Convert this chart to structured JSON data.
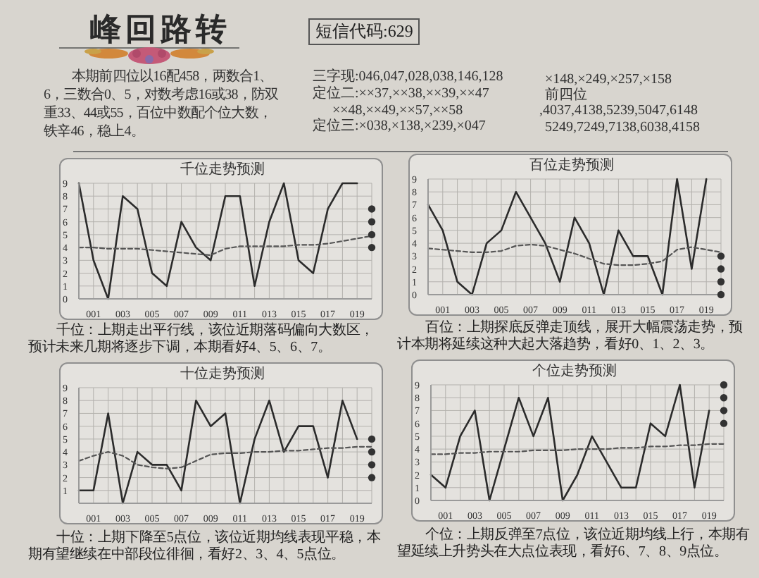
{
  "chart_data": [
    {
      "type": "other",
      "title": "峰回路转",
      "annotations": [
        "短信代码:629",
        "本期前四位以16配458，两数合1、6，三数合0、5，对数考虑16或38，防双重33、44或55，百位中数配个位大数，铁辛46，稳上4。",
        "三字现:046,047,028,038,146,128",
        "定位二:××37,××38,××39,××47",
        "××48,××49,××57,××58",
        "定位三:×038,×138,×239,×047",
        "×148,×249,×257,×158",
        "前四位",
        ",4037,4138,5239,5047,6148",
        "5249,7249,7138,6038,4158"
      ]
    },
    {
      "type": "line",
      "title": "千位走势预测",
      "categories": [
        null,
        "001",
        null,
        "003",
        null,
        "005",
        null,
        "007",
        null,
        "009",
        null,
        "011",
        null,
        "013",
        null,
        "015",
        null,
        "017",
        null,
        "019",
        null
      ],
      "series": [
        {
          "color": "#2b2b2b",
          "values": [
            9,
            3,
            0,
            8,
            7,
            2,
            1,
            6,
            4,
            3,
            8,
            8,
            1,
            6,
            9,
            3,
            2,
            7,
            9,
            9,
            null
          ]
        },
        {
          "color": "#555555",
          "line_style": "dashed",
          "values": [
            4.0,
            4.0,
            3.9,
            3.9,
            3.9,
            3.8,
            3.7,
            3.6,
            3.5,
            3.4,
            3.9,
            4.1,
            4.1,
            4.1,
            4.1,
            4.2,
            4.2,
            4.3,
            4.5,
            4.7,
            4.9
          ]
        },
        {
          "type": "scatter",
          "marker": "circle",
          "color": "#333333",
          "values": [
            null,
            null,
            null,
            null,
            null,
            null,
            null,
            null,
            null,
            null,
            null,
            null,
            null,
            null,
            null,
            null,
            null,
            null,
            null,
            null,
            7
          ]
        },
        {
          "type": "scatter",
          "marker": "circle",
          "color": "#333333",
          "values": [
            null,
            null,
            null,
            null,
            null,
            null,
            null,
            null,
            null,
            null,
            null,
            null,
            null,
            null,
            null,
            null,
            null,
            null,
            null,
            null,
            6
          ]
        },
        {
          "type": "scatter",
          "marker": "circle",
          "color": "#333333",
          "values": [
            null,
            null,
            null,
            null,
            null,
            null,
            null,
            null,
            null,
            null,
            null,
            null,
            null,
            null,
            null,
            null,
            null,
            null,
            null,
            null,
            5
          ]
        },
        {
          "type": "scatter",
          "marker": "circle",
          "color": "#333333",
          "values": [
            null,
            null,
            null,
            null,
            null,
            null,
            null,
            null,
            null,
            null,
            null,
            null,
            null,
            null,
            null,
            null,
            null,
            null,
            null,
            null,
            4
          ]
        }
      ],
      "ylim": [
        0,
        9
      ],
      "yticks": [
        0,
        1,
        2,
        3,
        4,
        5,
        6,
        7,
        8,
        9
      ],
      "grid": true,
      "annotations": [
        "千位：上期走出平行线，该位近期落码偏向大数区，预计未来几期将逐步下调，本期看好4、5、6、7。"
      ]
    },
    {
      "type": "line",
      "title": "百位走势预测",
      "categories": [
        null,
        "001",
        null,
        "003",
        null,
        "005",
        null,
        "007",
        null,
        "009",
        null,
        "011",
        null,
        "013",
        null,
        "015",
        null,
        "017",
        null,
        "019",
        null
      ],
      "series": [
        {
          "color": "#2b2b2b",
          "values": [
            7,
            5,
            1,
            0,
            4,
            5,
            8,
            6,
            4,
            1,
            6,
            4,
            0,
            5,
            3,
            3,
            0,
            9,
            2,
            9,
            null
          ]
        },
        {
          "color": "#555555",
          "line_style": "dashed",
          "values": [
            3.6,
            3.5,
            3.4,
            3.3,
            3.3,
            3.4,
            3.8,
            3.9,
            3.8,
            3.5,
            3.2,
            2.8,
            2.4,
            2.3,
            2.3,
            2.4,
            2.6,
            3.5,
            3.7,
            3.5,
            3.3
          ]
        },
        {
          "type": "scatter",
          "marker": "circle",
          "color": "#333333",
          "values": [
            null,
            null,
            null,
            null,
            null,
            null,
            null,
            null,
            null,
            null,
            null,
            null,
            null,
            null,
            null,
            null,
            null,
            null,
            null,
            null,
            3
          ]
        },
        {
          "type": "scatter",
          "marker": "circle",
          "color": "#333333",
          "values": [
            null,
            null,
            null,
            null,
            null,
            null,
            null,
            null,
            null,
            null,
            null,
            null,
            null,
            null,
            null,
            null,
            null,
            null,
            null,
            null,
            2
          ]
        },
        {
          "type": "scatter",
          "marker": "circle",
          "color": "#333333",
          "values": [
            null,
            null,
            null,
            null,
            null,
            null,
            null,
            null,
            null,
            null,
            null,
            null,
            null,
            null,
            null,
            null,
            null,
            null,
            null,
            null,
            1
          ]
        },
        {
          "type": "scatter",
          "marker": "circle",
          "color": "#333333",
          "values": [
            null,
            null,
            null,
            null,
            null,
            null,
            null,
            null,
            null,
            null,
            null,
            null,
            null,
            null,
            null,
            null,
            null,
            null,
            null,
            null,
            0
          ]
        }
      ],
      "ylim": [
        0,
        9
      ],
      "yticks": [
        0,
        1,
        2,
        3,
        4,
        5,
        6,
        7,
        8,
        9
      ],
      "grid": true,
      "annotations": [
        "百位：上期探底反弹走顶线，展开大幅震荡走势，预计本期将延续这种大起大落趋势，看好0、1、2、3。"
      ]
    },
    {
      "type": "line",
      "title": "十位走势预测",
      "categories": [
        null,
        "001",
        null,
        "003",
        null,
        "005",
        null,
        "007",
        null,
        "009",
        null,
        "011",
        null,
        "013",
        null,
        "015",
        null,
        "017",
        null,
        "019",
        null
      ],
      "series": [
        {
          "color": "#2b2b2b",
          "values": [
            1,
            1,
            7,
            0,
            4,
            3,
            3,
            1,
            8,
            6,
            7,
            0,
            5,
            8,
            4,
            6,
            6,
            2,
            8,
            5,
            null
          ]
        },
        {
          "color": "#555555",
          "line_style": "dashed",
          "values": [
            3.3,
            3.7,
            4.0,
            3.7,
            3.0,
            2.8,
            2.7,
            2.8,
            3.3,
            3.8,
            3.9,
            3.9,
            4.0,
            4.0,
            4.1,
            4.1,
            4.2,
            4.3,
            4.3,
            4.4,
            4.4
          ]
        },
        {
          "type": "scatter",
          "marker": "circle",
          "color": "#333333",
          "values": [
            null,
            null,
            null,
            null,
            null,
            null,
            null,
            null,
            null,
            null,
            null,
            null,
            null,
            null,
            null,
            null,
            null,
            null,
            null,
            null,
            5
          ]
        },
        {
          "type": "scatter",
          "marker": "circle",
          "color": "#333333",
          "values": [
            null,
            null,
            null,
            null,
            null,
            null,
            null,
            null,
            null,
            null,
            null,
            null,
            null,
            null,
            null,
            null,
            null,
            null,
            null,
            null,
            4
          ]
        },
        {
          "type": "scatter",
          "marker": "circle",
          "color": "#333333",
          "values": [
            null,
            null,
            null,
            null,
            null,
            null,
            null,
            null,
            null,
            null,
            null,
            null,
            null,
            null,
            null,
            null,
            null,
            null,
            null,
            null,
            3
          ]
        },
        {
          "type": "scatter",
          "marker": "circle",
          "color": "#333333",
          "values": [
            null,
            null,
            null,
            null,
            null,
            null,
            null,
            null,
            null,
            null,
            null,
            null,
            null,
            null,
            null,
            null,
            null,
            null,
            null,
            null,
            2
          ]
        }
      ],
      "ylim": [
        0,
        9
      ],
      "yticks": [
        {
          "value": 0,
          "label": null
        },
        1,
        2,
        3,
        4,
        5,
        6,
        7,
        8,
        9
      ],
      "grid": true,
      "annotations": [
        "十位：上期下降至5点位，该位近期均线表现平稳，本期有望继续在中部段位徘徊，看好2、3、4、5点位。"
      ]
    },
    {
      "type": "line",
      "title": "个位走势预测",
      "categories": [
        null,
        "001",
        null,
        "003",
        null,
        "005",
        null,
        "007",
        null,
        "009",
        null,
        "011",
        null,
        "013",
        null,
        "015",
        null,
        "017",
        null,
        "019",
        null
      ],
      "series": [
        {
          "color": "#2b2b2b",
          "values": [
            2,
            1,
            5,
            7,
            0,
            4,
            8,
            5,
            8,
            0,
            2,
            5,
            3,
            1,
            1,
            6,
            5,
            9,
            1,
            7,
            null
          ]
        },
        {
          "color": "#555555",
          "line_style": "dashed",
          "values": [
            3.6,
            3.6,
            3.7,
            3.7,
            3.8,
            3.8,
            3.8,
            3.9,
            3.9,
            3.9,
            4.0,
            4.0,
            4.0,
            4.1,
            4.1,
            4.2,
            4.2,
            4.3,
            4.3,
            4.4,
            4.4
          ]
        },
        {
          "type": "scatter",
          "marker": "circle",
          "color": "#333333",
          "values": [
            null,
            null,
            null,
            null,
            null,
            null,
            null,
            null,
            null,
            null,
            null,
            null,
            null,
            null,
            null,
            null,
            null,
            null,
            null,
            null,
            9
          ]
        },
        {
          "type": "scatter",
          "marker": "circle",
          "color": "#333333",
          "values": [
            null,
            null,
            null,
            null,
            null,
            null,
            null,
            null,
            null,
            null,
            null,
            null,
            null,
            null,
            null,
            null,
            null,
            null,
            null,
            null,
            8
          ]
        },
        {
          "type": "scatter",
          "marker": "circle",
          "color": "#333333",
          "values": [
            null,
            null,
            null,
            null,
            null,
            null,
            null,
            null,
            null,
            null,
            null,
            null,
            null,
            null,
            null,
            null,
            null,
            null,
            null,
            null,
            7
          ]
        },
        {
          "type": "scatter",
          "marker": "circle",
          "color": "#333333",
          "values": [
            null,
            null,
            null,
            null,
            null,
            null,
            null,
            null,
            null,
            null,
            null,
            null,
            null,
            null,
            null,
            null,
            null,
            null,
            null,
            null,
            6
          ]
        }
      ],
      "ylim": [
        0,
        9
      ],
      "yticks": [
        0,
        1,
        2,
        3,
        4,
        5,
        6,
        7,
        8,
        9
      ],
      "grid": true,
      "annotations": [
        "个位：上期反弹至7点位，该位近期均线上行，本期有望延续上升势头在大点位表现，看好6、7、8、9点位。"
      ]
    }
  ]
}
